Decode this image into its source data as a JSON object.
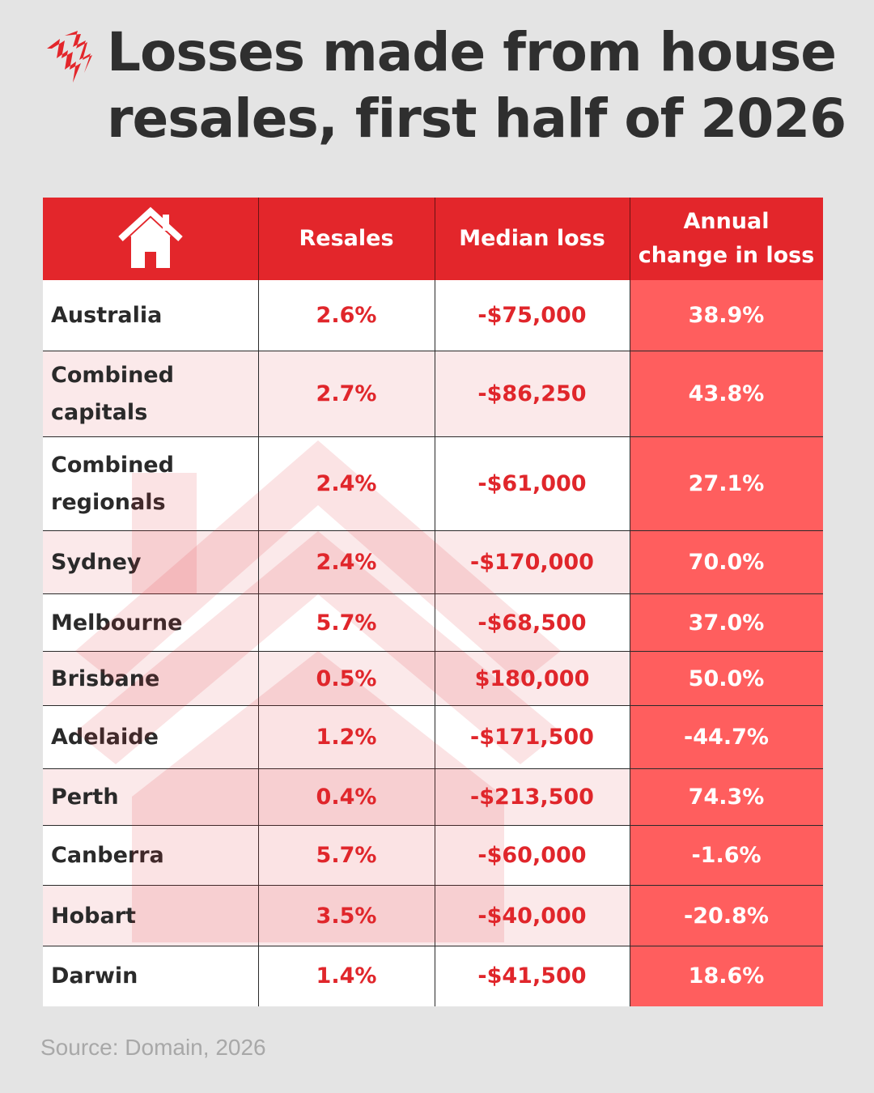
{
  "title": "Losses made from house resales, first half of 2026",
  "source": "Source: Domain, 2026",
  "colors": {
    "header": "#e3262b",
    "accent": "#e0262b",
    "change_column": "#ff5e5e",
    "background": "#e4e4e4"
  },
  "icons": {
    "logo": "sbs-logo-icon",
    "header": "house-icon"
  },
  "chart_data": {
    "type": "table",
    "title": "Losses made from house resales, first half of 2026",
    "columns": [
      "",
      "Resales",
      "Median loss",
      "Annual change in loss"
    ],
    "rows": [
      {
        "region": "Australia",
        "resales": "2.6%",
        "median_loss": "-$75,000",
        "annual_change": "38.9%"
      },
      {
        "region": "Combined capitals",
        "resales": "2.7%",
        "median_loss": "-$86,250",
        "annual_change": "43.8%"
      },
      {
        "region": "Combined regionals",
        "resales": "2.4%",
        "median_loss": "-$61,000",
        "annual_change": "27.1%"
      },
      {
        "region": "Sydney",
        "resales": "2.4%",
        "median_loss": "-$170,000",
        "annual_change": "70.0%"
      },
      {
        "region": "Melbourne",
        "resales": "5.7%",
        "median_loss": "-$68,500",
        "annual_change": "37.0%"
      },
      {
        "region": "Brisbane",
        "resales": "0.5%",
        "median_loss": "$180,000",
        "annual_change": "50.0%"
      },
      {
        "region": "Adelaide",
        "resales": "1.2%",
        "median_loss": "-$171,500",
        "annual_change": "-44.7%"
      },
      {
        "region": "Perth",
        "resales": "0.4%",
        "median_loss": "-$213,500",
        "annual_change": "74.3%"
      },
      {
        "region": "Canberra",
        "resales": "5.7%",
        "median_loss": "-$60,000",
        "annual_change": "-1.6%"
      },
      {
        "region": "Hobart",
        "resales": "3.5%",
        "median_loss": "-$40,000",
        "annual_change": "-20.8%"
      },
      {
        "region": "Darwin",
        "resales": "1.4%",
        "median_loss": "-$41,500",
        "annual_change": "18.6%"
      }
    ]
  }
}
